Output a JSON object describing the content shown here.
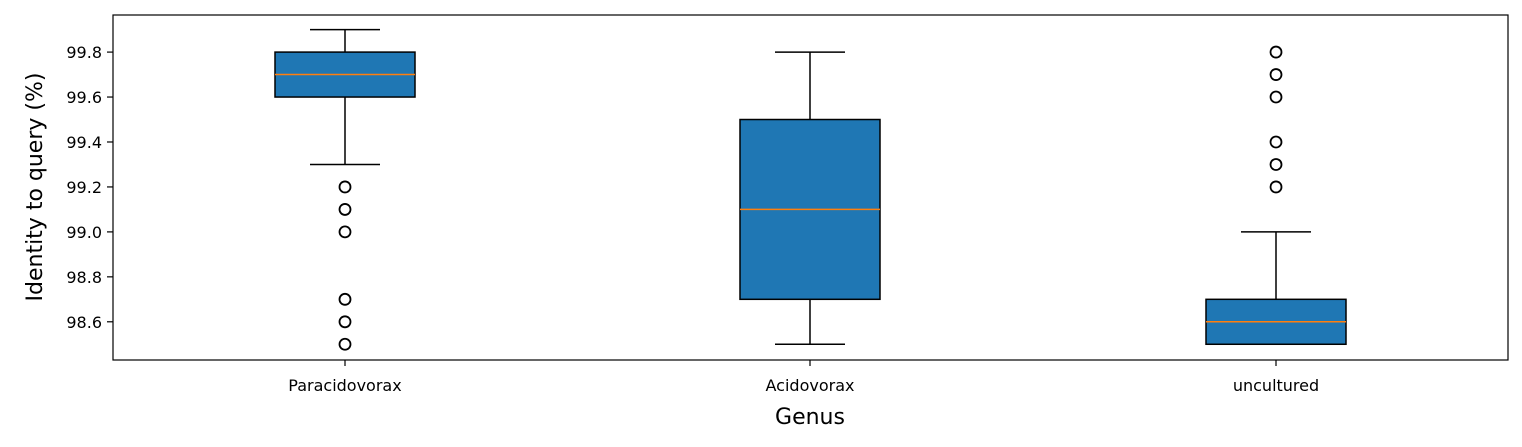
{
  "chart_data": {
    "type": "box",
    "title": "",
    "xlabel": "Genus",
    "ylabel": "Identity to query (%)",
    "ylim": [
      98.43,
      99.965
    ],
    "yticks": [
      "98.6",
      "98.8",
      "99.0",
      "99.2",
      "99.4",
      "99.6",
      "99.8"
    ],
    "categories": [
      "Paracidovorax",
      "Acidovorax",
      "uncultured"
    ],
    "boxes": [
      {
        "whisker_low": 99.3,
        "q1": 99.6,
        "median": 99.7,
        "q3": 99.8,
        "whisker_high": 99.9,
        "outliers": [
          99.2,
          99.1,
          99.0,
          98.7,
          98.6,
          98.5
        ]
      },
      {
        "whisker_low": 98.5,
        "q1": 98.7,
        "median": 99.1,
        "q3": 99.5,
        "whisker_high": 99.8,
        "outliers": []
      },
      {
        "whisker_low": 98.5,
        "q1": 98.5,
        "median": 98.6,
        "q3": 98.7,
        "whisker_high": 99.0,
        "outliers": [
          99.2,
          99.3,
          99.4,
          99.6,
          99.7,
          99.8
        ]
      }
    ],
    "grid": false,
    "colors": {
      "box_fill": "#1f77b4",
      "median": "#ff7f0e",
      "edge": "#000000"
    }
  }
}
